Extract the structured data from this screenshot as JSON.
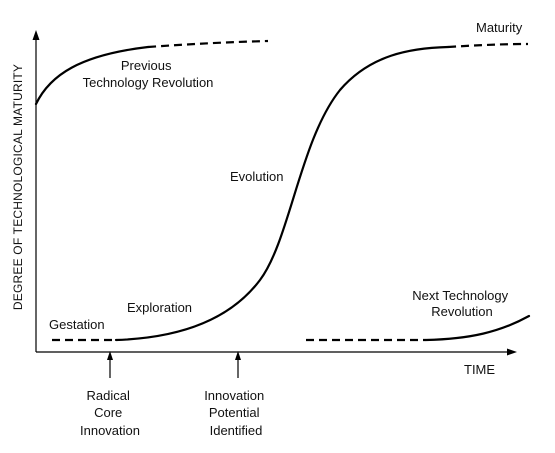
{
  "axes": {
    "y_label": "DEGREE OF TECHNOLOGICAL MATURITY",
    "x_label": "TIME"
  },
  "stages": {
    "maturity": "Maturity",
    "previous_revolution": [
      "Previous",
      "Technology Revolution"
    ],
    "evolution": "Evolution",
    "exploration": "Exploration",
    "gestation": "Gestation",
    "next_revolution": [
      "Next Technology",
      "Revolution"
    ]
  },
  "markers": {
    "radical_core_innovation": [
      "Radical",
      "Core",
      "Innovation"
    ],
    "innovation_potential_identified": [
      "Innovation",
      "Potential",
      "Identified"
    ]
  },
  "colors": {
    "line": "#000000",
    "background": "#ffffff"
  }
}
